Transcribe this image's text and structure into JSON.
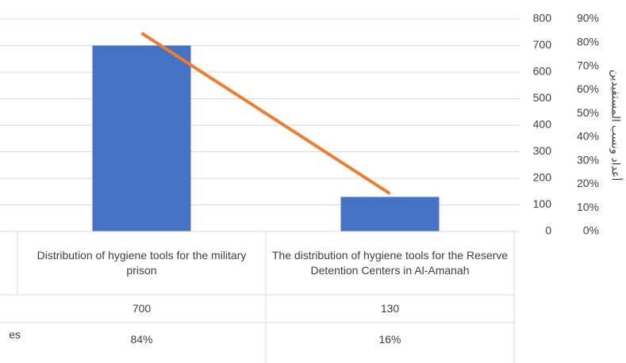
{
  "chart_data": {
    "type": "bar_line",
    "y_axis_title": "أعداد ونسب المستفيدين",
    "categories": [
      "Distribution of hygiene tools for the military prison",
      "The distribution of hygiene tools for the Reserve Detention Centers in Al-Amanah"
    ],
    "series": [
      {
        "type": "bar",
        "color": "#4472c4",
        "values": [
          700,
          130
        ]
      },
      {
        "name": "es",
        "type": "line",
        "axis": "y2",
        "color": "#ed7d31",
        "values": [
          84,
          16
        ],
        "value_labels": [
          "84%",
          "16%"
        ]
      }
    ],
    "ylim": [
      0,
      800
    ],
    "yticks": [
      0,
      100,
      200,
      300,
      400,
      500,
      600,
      700,
      800
    ],
    "y2lim": [
      0,
      90
    ],
    "y2ticks": [
      {
        "value": 0,
        "label": "0%"
      },
      {
        "value": 10,
        "label": "10%"
      },
      {
        "value": 20,
        "label": "20%"
      },
      {
        "value": 30,
        "label": "30%"
      },
      {
        "value": 40,
        "label": "40%"
      },
      {
        "value": 50,
        "label": "50%"
      },
      {
        "value": 60,
        "label": "60%"
      },
      {
        "value": 70,
        "label": "70%"
      },
      {
        "value": 80,
        "label": "80%"
      },
      {
        "value": 90,
        "label": "90%"
      }
    ],
    "grid": true
  }
}
